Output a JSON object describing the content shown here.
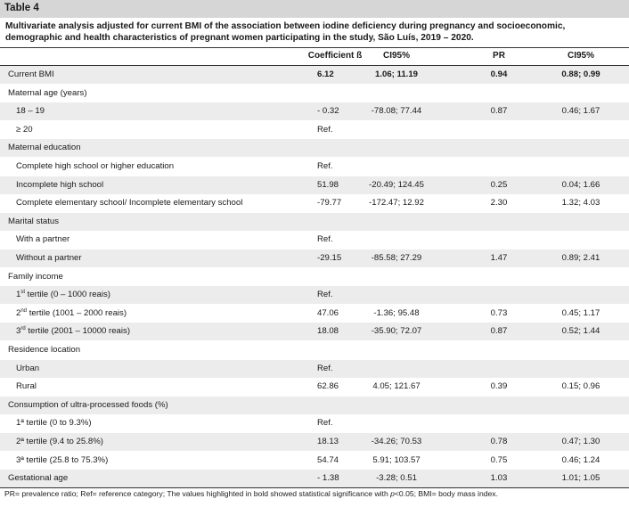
{
  "table_label": "Table 4",
  "caption": "Multivariate analysis adjusted for current BMI of the association between iodine deficiency during pregnancy and socioeconomic, demographic and health characteristics of pregnant women participating in the study, São Luís, 2019 – 2020.",
  "headers": [
    "",
    "Coefficient ß",
    "CI95%",
    "PR",
    "CI95%"
  ],
  "rows": [
    {
      "label": "Current BMI",
      "coef": "6.12",
      "ci1": "1.06; 11.19",
      "pr": "0.94",
      "ci2": "0.88; 0.99"
    },
    {
      "label": "Maternal age (years)",
      "coef": "",
      "ci1": "",
      "pr": "",
      "ci2": ""
    },
    {
      "label": "18 – 19",
      "coef": "- 0.32",
      "ci1": "-78.08; 77.44",
      "pr": "0.87",
      "ci2": "0.46; 1.67"
    },
    {
      "label": "≥ 20",
      "coef": "Ref.",
      "ci1": "",
      "pr": "",
      "ci2": ""
    },
    {
      "label": "Maternal education",
      "coef": "",
      "ci1": "",
      "pr": "",
      "ci2": ""
    },
    {
      "label": "Complete high school or higher education",
      "coef": "Ref.",
      "ci1": "",
      "pr": "",
      "ci2": ""
    },
    {
      "label": "Incomplete high school",
      "coef": "51.98",
      "ci1": "-20.49; 124.45",
      "pr": "0.25",
      "ci2": "0.04; 1.66"
    },
    {
      "label": "Complete elementary school/ Incomplete elementary school",
      "coef": "-79.77",
      "ci1": "-172.47; 12.92",
      "pr": "2.30",
      "ci2": "1.32; 4.03"
    },
    {
      "label": "Marital status",
      "coef": "",
      "ci1": "",
      "pr": "",
      "ci2": ""
    },
    {
      "label": "With a partner",
      "coef": "Ref.",
      "ci1": "",
      "pr": "",
      "ci2": ""
    },
    {
      "label": "Without a partner",
      "coef": "-29.15",
      "ci1": "-85.58; 27.29",
      "pr": "1.47",
      "ci2": "0.89; 2.41"
    },
    {
      "label": "Family income",
      "coef": "",
      "ci1": "",
      "pr": "",
      "ci2": ""
    },
    {
      "label": "1st tertile (0 – 1000 reais)",
      "coef": "Ref.",
      "ci1": "",
      "pr": "",
      "ci2": ""
    },
    {
      "label": "2nd tertile (1001 – 2000 reais)",
      "coef": "47.06",
      "ci1": "-1.36; 95.48",
      "pr": "0.73",
      "ci2": "0.45; 1.17"
    },
    {
      "label": "3rd tertile (2001 – 10000 reais)",
      "coef": "18.08",
      "ci1": "-35.90; 72.07",
      "pr": "0.87",
      "ci2": "0.52; 1.44"
    },
    {
      "label": "Residence location",
      "coef": "",
      "ci1": "",
      "pr": "",
      "ci2": ""
    },
    {
      "label": "Urban",
      "coef": "Ref.",
      "ci1": "",
      "pr": "",
      "ci2": ""
    },
    {
      "label": "Rural",
      "coef": "62.86",
      "ci1": "4.05; 121.67",
      "pr": "0.39",
      "ci2": "0.15; 0.96"
    },
    {
      "label": "Consumption of ultra-processed foods (%)",
      "coef": "",
      "ci1": "",
      "pr": "",
      "ci2": ""
    },
    {
      "label": "1ª tertile (0 to 9.3%)",
      "coef": "Ref.",
      "ci1": "",
      "pr": "",
      "ci2": ""
    },
    {
      "label": "2ª tertile (9.4 to 25.8%)",
      "coef": "18.13",
      "ci1": "-34.26; 70.53",
      "pr": "0.78",
      "ci2": "0.47; 1.30"
    },
    {
      "label": "3ª tertile (25.8 to 75.3%)",
      "coef": "54.74",
      "ci1": "5.91; 103.57",
      "pr": "0.75",
      "ci2": "0.46; 1.24"
    },
    {
      "label": "Gestational age",
      "coef": "- 1.38",
      "ci1": "-3.28; 0.51",
      "pr": "1.03",
      "ci2": "1.01; 1.05"
    }
  ],
  "footnote": "PR= prevalence ratio; Ref= reference category; The values highlighted in bold showed statistical significance with p<0.05; BMI= body mass index."
}
